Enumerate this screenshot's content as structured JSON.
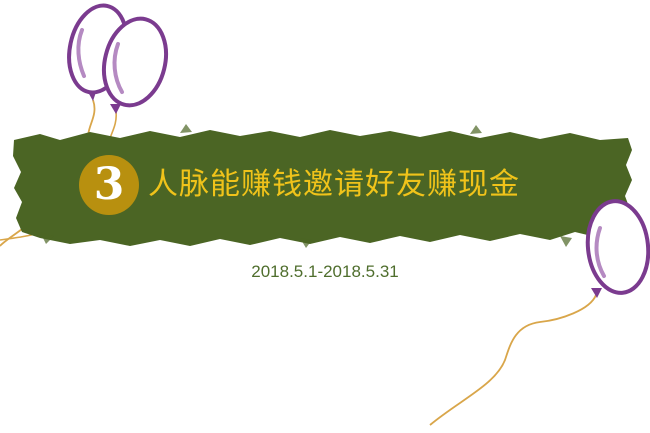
{
  "banner": {
    "number": "3",
    "title": "人脉能赚钱邀请好友赚现金"
  },
  "date_range": "2018.5.1-2018.5.31",
  "colors": {
    "banner_green": "#4b6524",
    "badge_gold": "#b8900f",
    "title_gold": "#f0c31a",
    "date_green": "#4f6e2d",
    "balloon_purple": "#7b3b8f",
    "balloon_fill": "#ffffff",
    "string_gold": "#d9a64a"
  },
  "icons": [
    "balloon-icon",
    "balloon-icon",
    "balloon-icon"
  ]
}
